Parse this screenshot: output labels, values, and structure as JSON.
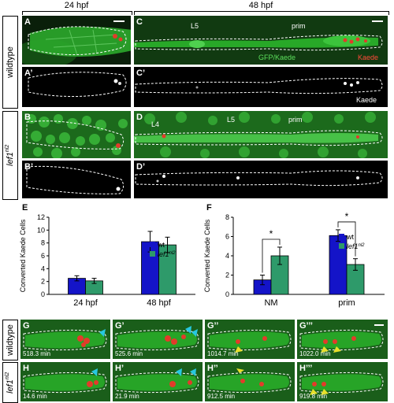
{
  "headers": {
    "h24": "24 hpf",
    "h48": "48 hpf"
  },
  "rows": {
    "wildtype": "wildtype",
    "lef1_base": "lef1",
    "lef1_sup": "nl2"
  },
  "panels": {
    "A": "A",
    "A2": "A’",
    "B": "B",
    "B2": "B’",
    "C": "C",
    "C2": "C’",
    "D": "D",
    "D2": "D’",
    "C_L5": "L5",
    "C_prim": "prim",
    "C_green": "GFP/Kaede",
    "C_red": "Kaede",
    "C2_kaede": "Kaede",
    "D_L4": "L4",
    "D_L5": "L5",
    "D_prim": "prim"
  },
  "timelapse": {
    "top": [
      {
        "letter": "G",
        "time": "518.3 min"
      },
      {
        "letter": "G’",
        "time": "525.6 min"
      },
      {
        "letter": "G’’",
        "time": "1014.7 min"
      },
      {
        "letter": "G’’’",
        "time": "1022.0 min"
      }
    ],
    "bottom": [
      {
        "letter": "H",
        "time": "14.6 min"
      },
      {
        "letter": "H’",
        "time": "21.9 min"
      },
      {
        "letter": "H’’",
        "time": "912.5 min"
      },
      {
        "letter": "H’’’",
        "time": "919.8 min"
      }
    ]
  },
  "colors": {
    "wt": "#1414c8",
    "lef1": "#2e9a6a",
    "gfp": "#2bb52b",
    "kaede_red": "#e33b2a",
    "cyan_arrow": "#27c8e0",
    "yellow_arrow": "#e8e02a"
  },
  "chart_data": [
    {
      "type": "bar",
      "letter": "E",
      "ylabel": "Converted Kaede Cells",
      "categories": [
        "24 hpf",
        "48 hpf"
      ],
      "ylim": [
        0,
        12
      ],
      "series": [
        {
          "name": "wt",
          "values": [
            2.5,
            8.2
          ],
          "errors": [
            0.4,
            1.6
          ]
        },
        {
          "name": "lef1",
          "name_sup": "nl2",
          "values": [
            2.1,
            7.7
          ],
          "errors": [
            0.4,
            1.2
          ]
        }
      ],
      "legend": "top-right"
    },
    {
      "type": "bar",
      "letter": "F",
      "ylabel": "Converted Kaede Cells",
      "categories": [
        "NM",
        "prim"
      ],
      "ylim": [
        0,
        8
      ],
      "series": [
        {
          "name": "wt",
          "values": [
            1.5,
            6.1
          ],
          "errors": [
            0.5,
            0.6
          ]
        },
        {
          "name": "lef1",
          "name_sup": "nl2",
          "values": [
            4.0,
            3.1
          ],
          "errors": [
            0.9,
            0.6
          ]
        }
      ],
      "significance": [
        "*",
        "*"
      ],
      "legend": "top-right"
    }
  ]
}
